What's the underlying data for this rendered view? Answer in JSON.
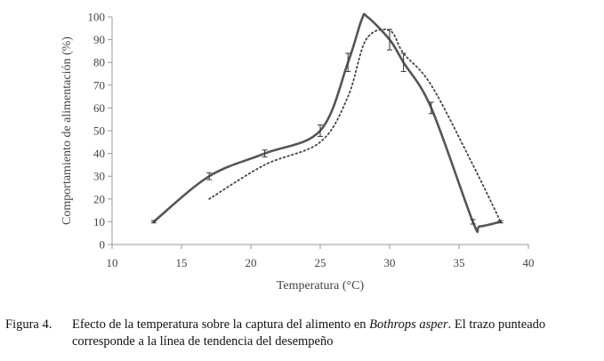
{
  "chart_data": {
    "type": "line",
    "xlabel": "Temperatura (°C)",
    "ylabel": "Comportamiento de alimentación (%)",
    "xlim": [
      10,
      40
    ],
    "ylim": [
      0,
      100
    ],
    "xticks": [
      10,
      15,
      20,
      25,
      30,
      35,
      40
    ],
    "yticks": [
      0,
      10,
      20,
      30,
      40,
      50,
      60,
      70,
      80,
      90,
      100
    ],
    "grid": false,
    "legend": "none",
    "series": [
      {
        "style": "solid",
        "color": "#555555",
        "x": [
          13,
          17,
          21,
          25,
          27,
          28,
          28.4,
          30,
          31,
          33,
          36,
          36.5,
          38
        ],
        "y": [
          10,
          30,
          40,
          50,
          80,
          99,
          100,
          90,
          80,
          60,
          10,
          8,
          10
        ],
        "error": [
          0.5,
          1.5,
          1.5,
          2.5,
          4,
          0,
          0,
          4.5,
          4,
          2.5,
          1,
          0,
          0.5
        ]
      },
      {
        "style": "dotted",
        "color": "#444444",
        "x": [
          17,
          21,
          25,
          27,
          28.3,
          30,
          31,
          33,
          36,
          38
        ],
        "y": [
          20,
          35,
          45,
          65,
          90,
          94,
          84,
          70,
          35,
          10
        ]
      }
    ]
  },
  "caption": {
    "label": "Figura 4.",
    "text_before": "Efecto de la temperatura sobre la captura del alimento en ",
    "species": "Bothrops asper",
    "text_after": ". El trazo punteado corresponde a la línea de tendencia del desempeño"
  }
}
